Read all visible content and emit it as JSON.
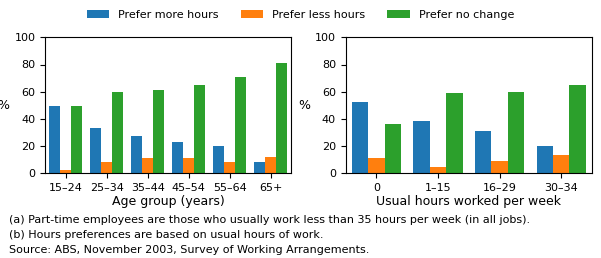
{
  "chart_data": [
    {
      "type": "bar",
      "categories": [
        "15–24",
        "25–34",
        "35–44",
        "45–54",
        "55–64",
        "65+"
      ],
      "series": [
        {
          "name": "Prefer more hours",
          "values": [
            49,
            33,
            27,
            23,
            20,
            8
          ]
        },
        {
          "name": "Prefer less hours",
          "values": [
            2,
            8,
            11,
            11,
            8,
            12
          ]
        },
        {
          "name": "Prefer no change",
          "values": [
            49,
            60,
            61,
            65,
            71,
            81
          ]
        }
      ],
      "xlabel": "Age group (years)",
      "ylabel": "%",
      "ylim": [
        0,
        100
      ],
      "yticks": [
        0,
        20,
        40,
        60,
        80,
        100
      ],
      "legend": "upper center",
      "annotations": [
        "(a) Part-time employees are those who usually work less than 35 hours per week (in all jobs).",
        "(b) Hours preferences are based on usual hours of work.",
        "Source: ABS, November 2003, Survey of Working Arrangements."
      ]
    },
    {
      "type": "bar",
      "categories": [
        "0",
        "1–15",
        "16–29",
        "30–34"
      ],
      "series": [
        {
          "name": "Prefer more hours",
          "values": [
            52,
            38,
            31,
            20
          ]
        },
        {
          "name": "Prefer less hours",
          "values": [
            11,
            4,
            9,
            13
          ]
        },
        {
          "name": "Prefer no change",
          "values": [
            36,
            59,
            60,
            65
          ]
        }
      ],
      "xlabel": "Usual hours worked per week",
      "ylabel": "%",
      "ylim": [
        0,
        100
      ],
      "yticks": [
        0,
        20,
        40,
        60,
        80,
        100
      ],
      "legend": "upper center"
    }
  ]
}
